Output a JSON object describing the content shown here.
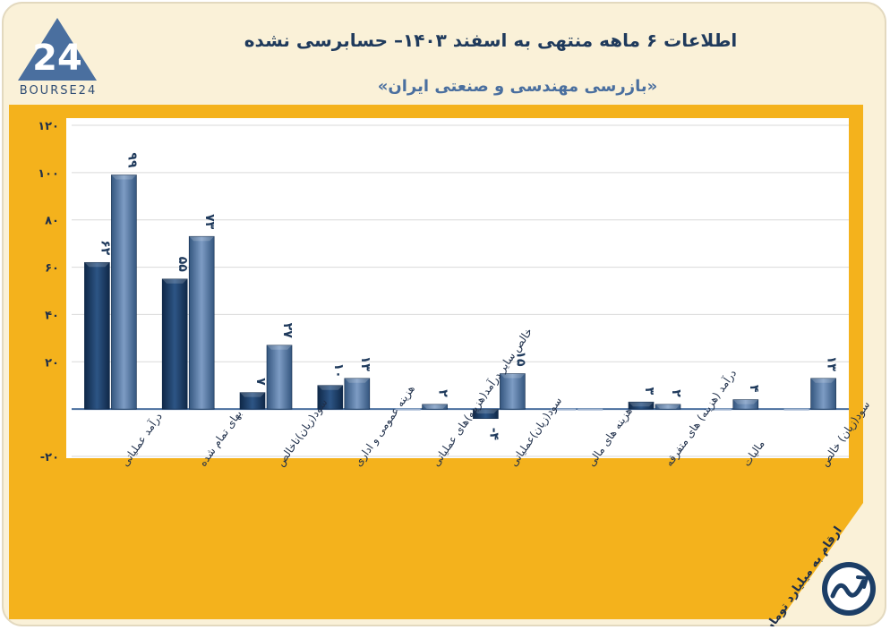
{
  "header": {
    "title": "اطلاعات ۶ ماهه منتهی به اسفند ۱۴۰۳– حسابرسی نشده",
    "subtitle": "«بازرسی مهندسی و صنعتی ایران»",
    "logo_text": "BOURSE24"
  },
  "note": "ارقام به میلیارد تومان",
  "colors": {
    "frame_bg": "#faf1d8",
    "plot_border": "#f4b21c",
    "plot_bg": "#ffffff",
    "series_1": "#1c3e66",
    "series_2": "#4a6f9f",
    "title": "#1f3a5c",
    "logo": "#4a6f9f"
  },
  "chart_data": {
    "type": "bar",
    "categories": [
      "درآمد عملیاتی",
      "بهای تمام شده",
      "سود(زیان)ناخالص",
      "هزینه عمومی و اداری",
      "خالص سایر درآمد(هزینه)های عملیاتی",
      "سود(زیان)عملیاتی",
      "هزینه های مالی",
      "درآمد (هزینه) های متفرقه",
      "مالیات",
      "سود(زیان) خالص"
    ],
    "series": [
      {
        "values": [
          62,
          55,
          7,
          10,
          0,
          -4,
          0,
          3,
          0,
          0
        ]
      },
      {
        "values": [
          99,
          73,
          27,
          13,
          2,
          15,
          0,
          2,
          4,
          13
        ]
      }
    ],
    "value_labels": [
      [
        "۶۲",
        "۵۵",
        "۷",
        "۱۰",
        "",
        "-۴",
        "",
        "۳",
        "",
        ""
      ],
      [
        "۹۹",
        "۷۳",
        "۲۷",
        "۱۳",
        "۲",
        "۱۵",
        "",
        "۲",
        "۴",
        "۱۳"
      ]
    ],
    "yticks": [
      -20,
      20,
      40,
      60,
      80,
      100,
      120
    ],
    "ytick_labels": [
      "-۲۰",
      "۲۰",
      "۴۰",
      "۶۰",
      "۸۰",
      "۱۰۰",
      "۱۲۰"
    ],
    "ylim": [
      -20,
      120
    ],
    "grid": true,
    "legend": "none"
  }
}
